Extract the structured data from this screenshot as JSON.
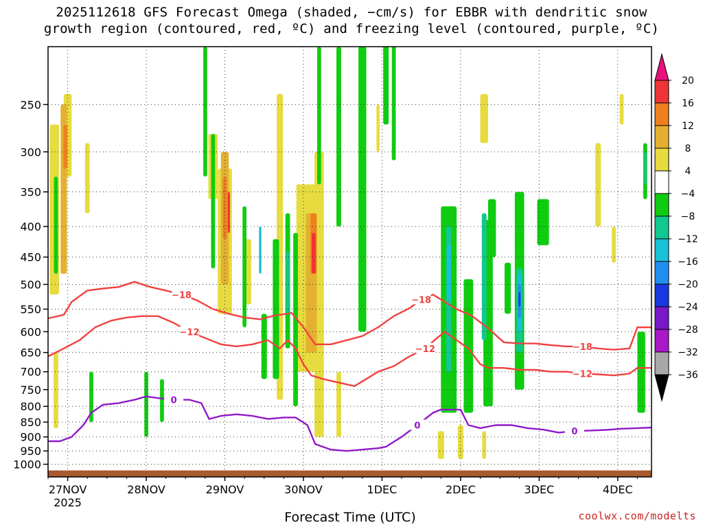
{
  "title": {
    "line1": "2025112618 GFS Forecast Omega (shaded, −cm/s) for EBBR with dendritic snow",
    "line2": "growth region (contoured, red, ºC) and freezing level (contoured, purple, ºC)"
  },
  "credit": "coolwx.com/modelts",
  "chart_data": {
    "type": "heatmap",
    "title": "2025112618 GFS Forecast Omega (shaded, −cm/s) for EBBR with dendritic snow growth region (contoured, red, ºC) and freezing level (contoured, purple, ºC)",
    "xlabel": "Forecast Time (UTC)",
    "ylabel": "",
    "y_axis_log": true,
    "ylim": [
      1050,
      200
    ],
    "yticks": [
      250,
      300,
      350,
      400,
      450,
      500,
      550,
      600,
      650,
      700,
      750,
      800,
      850,
      900,
      950,
      1000
    ],
    "x_ticks": [
      {
        "label": "27NOV",
        "sub": "2025",
        "t": 0.25
      },
      {
        "label": "28NOV",
        "sub": "",
        "t": 1.25
      },
      {
        "label": "29NOV",
        "sub": "",
        "t": 2.25
      },
      {
        "label": "30NOV",
        "sub": "",
        "t": 3.25
      },
      {
        "label": "1DEC",
        "sub": "",
        "t": 4.25
      },
      {
        "label": "2DEC",
        "sub": "",
        "t": 5.25
      },
      {
        "label": "3DEC",
        "sub": "",
        "t": 6.25
      },
      {
        "label": "4DEC",
        "sub": "",
        "t": 7.25
      }
    ],
    "xlim": [
      0,
      7.68
    ],
    "grid": true,
    "colorbar": {
      "labels": [
        "20",
        "16",
        "12",
        "8",
        "4",
        "−4",
        "−8",
        "−12",
        "−16",
        "−20",
        "−24",
        "−28",
        "−32",
        "−36"
      ],
      "bands": [
        {
          "from": 20,
          "to": 24,
          "color": "#e8107c"
        },
        {
          "from": 16,
          "to": 20,
          "color": "#ee3535"
        },
        {
          "from": 12,
          "to": 16,
          "color": "#ee8020"
        },
        {
          "from": 8,
          "to": 12,
          "color": "#e5b030"
        },
        {
          "from": 4,
          "to": 8,
          "color": "#e6dc40"
        },
        {
          "from": -4,
          "to": 4,
          "color": "#ffffff"
        },
        {
          "from": -8,
          "to": -4,
          "color": "#10cc10"
        },
        {
          "from": -12,
          "to": -8,
          "color": "#10c890"
        },
        {
          "from": -16,
          "to": -12,
          "color": "#18c0d8"
        },
        {
          "from": -20,
          "to": -16,
          "color": "#2090f0"
        },
        {
          "from": -24,
          "to": -20,
          "color": "#1838e0"
        },
        {
          "from": -28,
          "to": -24,
          "color": "#7818c8"
        },
        {
          "from": -32,
          "to": -28,
          "color": "#a818c8"
        },
        {
          "from": -36,
          "to": -32,
          "color": "#a8a8a8"
        },
        {
          "from": -40,
          "to": -36,
          "color": "#000000"
        }
      ]
    },
    "contours": [
      {
        "label": "−18",
        "color": "#f04040",
        "t": [
          0,
          0.2,
          0.3,
          0.5,
          0.7,
          0.9,
          1.1,
          1.3,
          1.5,
          1.7,
          1.9,
          2.1,
          2.3,
          2.5,
          2.7,
          2.9,
          3.05,
          3.1,
          3.25,
          3.4,
          3.6,
          3.8,
          4.0,
          4.2,
          4.4,
          4.6,
          4.75,
          4.9,
          5.0,
          5.2,
          5.4,
          5.6,
          5.8,
          6.0,
          6.2,
          6.4,
          6.6,
          6.8,
          7.0,
          7.2,
          7.4,
          7.5,
          7.68
        ],
        "p": [
          570,
          562,
          535,
          512,
          508,
          505,
          495,
          505,
          512,
          520,
          532,
          550,
          560,
          568,
          572,
          563,
          560,
          558,
          590,
          630,
          630,
          620,
          610,
          590,
          565,
          548,
          530,
          520,
          530,
          550,
          565,
          592,
          625,
          628,
          628,
          632,
          635,
          635,
          640,
          643,
          640,
          590,
          590
        ]
      },
      {
        "label": "−12",
        "color": "#f04040",
        "t": [
          0,
          0.2,
          0.4,
          0.6,
          0.8,
          1.0,
          1.2,
          1.4,
          1.6,
          1.8,
          2.0,
          2.2,
          2.4,
          2.6,
          2.8,
          2.95,
          3.05,
          3.15,
          3.25,
          3.35,
          3.5,
          3.7,
          3.9,
          4.05,
          4.2,
          4.4,
          4.6,
          4.8,
          4.95,
          5.05,
          5.2,
          5.35,
          5.5,
          5.6,
          5.8,
          6.0,
          6.2,
          6.4,
          6.6,
          6.8,
          7.0,
          7.2,
          7.4,
          7.5,
          7.68
        ],
        "p": [
          660,
          640,
          620,
          590,
          575,
          568,
          565,
          565,
          580,
          600,
          615,
          630,
          635,
          630,
          620,
          640,
          620,
          640,
          680,
          710,
          720,
          730,
          740,
          720,
          700,
          685,
          660,
          640,
          615,
          600,
          620,
          640,
          680,
          690,
          690,
          695,
          695,
          700,
          700,
          705,
          707,
          710,
          705,
          690,
          690
        ]
      },
      {
        "label": "0",
        "color": "#9018c8",
        "t": [
          0,
          0.15,
          0.3,
          0.45,
          0.55,
          0.7,
          0.9,
          1.1,
          1.25,
          1.4,
          1.6,
          1.8,
          1.95,
          2.05,
          2.2,
          2.4,
          2.6,
          2.8,
          3.0,
          3.15,
          3.3,
          3.4,
          3.6,
          3.8,
          4.0,
          4.2,
          4.3,
          4.5,
          4.7,
          4.9,
          5.0,
          5.1,
          5.25,
          5.35,
          5.5,
          5.7,
          5.9,
          6.1,
          6.3,
          6.5,
          6.7,
          6.9,
          7.1,
          7.3,
          7.5,
          7.68
        ],
        "p": [
          915,
          915,
          900,
          860,
          820,
          795,
          790,
          780,
          770,
          775,
          780,
          780,
          790,
          840,
          830,
          825,
          830,
          840,
          835,
          835,
          860,
          925,
          945,
          950,
          945,
          940,
          935,
          900,
          860,
          820,
          810,
          810,
          810,
          860,
          870,
          860,
          860,
          870,
          875,
          885,
          880,
          878,
          876,
          872,
          870,
          868
        ]
      }
    ],
    "shading": [
      {
        "color": "#e6dc40",
        "cells": [
          [
            0.08,
            270,
            520,
            0.12
          ],
          [
            0.25,
            240,
            330,
            0.1
          ],
          [
            0.5,
            290,
            380,
            0.06
          ],
          [
            2.1,
            280,
            360,
            0.12
          ],
          [
            2.25,
            320,
            560,
            0.18
          ],
          [
            2.95,
            240,
            780,
            0.08
          ],
          [
            3.3,
            340,
            700,
            0.28
          ],
          [
            3.45,
            300,
            900,
            0.12
          ],
          [
            5.0,
            880,
            980,
            0.08
          ],
          [
            5.25,
            860,
            980,
            0.07
          ],
          [
            5.55,
            880,
            980,
            0.05
          ],
          [
            5.55,
            240,
            290,
            0.1
          ],
          [
            7.0,
            290,
            400,
            0.07
          ],
          [
            7.2,
            400,
            460,
            0.05
          ],
          [
            7.3,
            240,
            270,
            0.05
          ],
          [
            0.1,
            650,
            870,
            0.06
          ],
          [
            3.7,
            700,
            900,
            0.06
          ],
          [
            2.55,
            420,
            540,
            0.07
          ],
          [
            4.2,
            250,
            300,
            0.04
          ]
        ]
      },
      {
        "color": "#e5b030",
        "cells": [
          [
            0.2,
            250,
            480,
            0.08
          ],
          [
            2.25,
            300,
            500,
            0.1
          ],
          [
            3.35,
            380,
            650,
            0.14
          ]
        ]
      },
      {
        "color": "#ee8020",
        "cells": [
          [
            0.22,
            270,
            320,
            0.05
          ],
          [
            2.25,
            330,
            420,
            0.05
          ],
          [
            3.38,
            380,
            480,
            0.08
          ]
        ]
      },
      {
        "color": "#ee3535",
        "cells": [
          [
            3.38,
            410,
            480,
            0.05
          ],
          [
            2.3,
            350,
            410,
            0.03
          ]
        ]
      },
      {
        "color": "#10cc10",
        "cells": [
          [
            0.1,
            330,
            480,
            0.05
          ],
          [
            0.55,
            700,
            850,
            0.05
          ],
          [
            1.25,
            700,
            900,
            0.05
          ],
          [
            1.45,
            720,
            850,
            0.05
          ],
          [
            2.0,
            200,
            330,
            0.05
          ],
          [
            2.1,
            280,
            470,
            0.05
          ],
          [
            2.5,
            370,
            590,
            0.05
          ],
          [
            2.75,
            560,
            720,
            0.07
          ],
          [
            2.9,
            420,
            720,
            0.08
          ],
          [
            3.05,
            380,
            640,
            0.06
          ],
          [
            3.15,
            410,
            800,
            0.06
          ],
          [
            3.7,
            200,
            400,
            0.06
          ],
          [
            4.0,
            200,
            600,
            0.1
          ],
          [
            4.3,
            160,
            270,
            0.07
          ],
          [
            5.1,
            370,
            820,
            0.2
          ],
          [
            5.35,
            490,
            820,
            0.12
          ],
          [
            5.6,
            390,
            800,
            0.12
          ],
          [
            5.85,
            460,
            560,
            0.08
          ],
          [
            6.0,
            350,
            750,
            0.12
          ],
          [
            5.65,
            360,
            450,
            0.1
          ],
          [
            6.3,
            360,
            430,
            0.15
          ],
          [
            7.55,
            600,
            820,
            0.1
          ],
          [
            7.6,
            290,
            360,
            0.05
          ],
          [
            4.4,
            180,
            310,
            0.05
          ],
          [
            3.45,
            200,
            340,
            0.05
          ]
        ]
      },
      {
        "color": "#10c890",
        "cells": [
          [
            5.1,
            400,
            700,
            0.07
          ],
          [
            5.55,
            380,
            620,
            0.06
          ],
          [
            6.0,
            470,
            650,
            0.08
          ],
          [
            3.05,
            440,
            560,
            0.04
          ],
          [
            7.6,
            300,
            340,
            0.03
          ]
        ]
      },
      {
        "color": "#18c0d8",
        "cells": [
          [
            5.1,
            430,
            530,
            0.05
          ],
          [
            6.0,
            480,
            600,
            0.05
          ],
          [
            2.7,
            400,
            480,
            0.03
          ]
        ]
      },
      {
        "color": "#2090f0",
        "cells": [
          [
            6.0,
            500,
            570,
            0.04
          ]
        ]
      },
      {
        "color": "#1838e0",
        "cells": [
          [
            6.0,
            515,
            545,
            0.025
          ]
        ]
      }
    ],
    "ground": {
      "color": "#a85a30",
      "level": 1000
    }
  }
}
